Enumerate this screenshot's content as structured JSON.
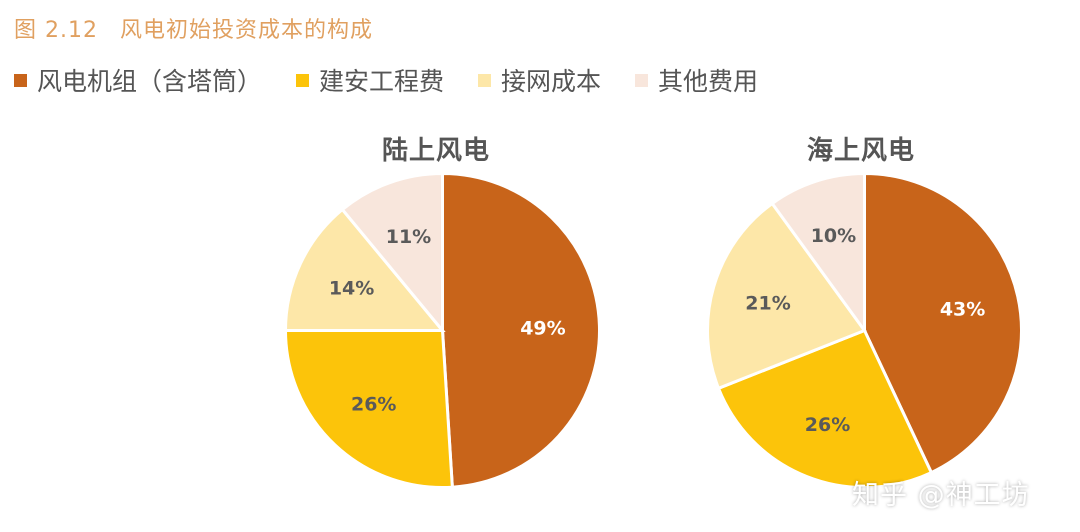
{
  "figure": {
    "number": "图 2.12",
    "title": "风电初始投资成本的构成"
  },
  "legend": [
    {
      "label": "风电机组（含塔筒）",
      "color": "#c8641a"
    },
    {
      "label": "建安工程费",
      "color": "#fcc40a"
    },
    {
      "label": "接网成本",
      "color": "#fde7a8"
    },
    {
      "label": "其他费用",
      "color": "#f8e6dc"
    }
  ],
  "watermark": "知乎 @神工坊",
  "chart_data": [
    {
      "type": "pie",
      "title": "陆上风电",
      "categories": [
        "风电机组（含塔筒）",
        "建安工程费",
        "接网成本",
        "其他费用"
      ],
      "values": [
        49,
        26,
        14,
        11
      ],
      "labels": [
        "49%",
        "26%",
        "14%",
        "11%"
      ],
      "colors": [
        "#c8641a",
        "#fcc40a",
        "#fde7a8",
        "#f8e6dc"
      ],
      "start_angle": "12 o'clock, clockwise"
    },
    {
      "type": "pie",
      "title": "海上风电",
      "categories": [
        "风电机组（含塔筒）",
        "建安工程费",
        "接网成本",
        "其他费用"
      ],
      "values": [
        43,
        26,
        21,
        10
      ],
      "labels": [
        "43%",
        "26%",
        "21%",
        "10%"
      ],
      "colors": [
        "#c8641a",
        "#fcc40a",
        "#fde7a8",
        "#f8e6dc"
      ],
      "start_angle": "12 o'clock, clockwise"
    }
  ]
}
